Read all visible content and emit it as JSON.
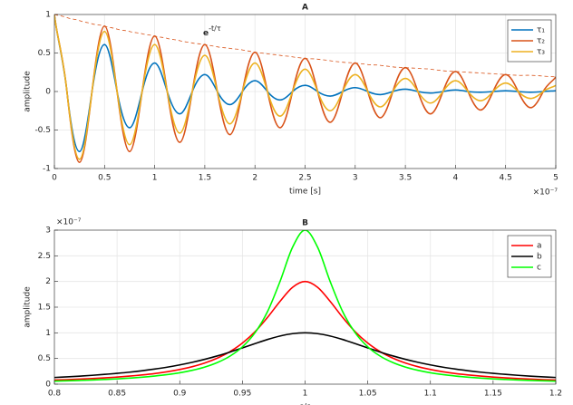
{
  "chart_data": [
    {
      "type": "line",
      "title": "A",
      "xlabel": "time [s]",
      "ylabel": "amplitude",
      "x_exponent": "×10⁻⁷",
      "annotation": {
        "text": "e",
        "superscript": "-t/τ"
      },
      "x": [
        0,
        0.125,
        0.25,
        0.375,
        0.5,
        0.625,
        0.75,
        0.875,
        1,
        1.125,
        1.25,
        1.375,
        1.5,
        1.625,
        1.75,
        1.875,
        2,
        2.125,
        2.25,
        2.375,
        2.5,
        2.625,
        2.75,
        2.875,
        3,
        3.125,
        3.25,
        3.375,
        3.5,
        3.625,
        3.75,
        3.875,
        4,
        4.125,
        4.25,
        4.375,
        4.5,
        4.625,
        4.75,
        4.875,
        5
      ],
      "series": [
        {
          "name": "τ₁",
          "color": "#0072BD",
          "values": [
            1,
            0,
            -0.78,
            0,
            0.61,
            0,
            -0.47,
            0,
            0.37,
            0,
            -0.29,
            0,
            0.22,
            0,
            -0.17,
            0,
            0.14,
            0,
            -0.11,
            0,
            0.08,
            0,
            -0.06,
            0,
            0.05,
            0,
            -0.04,
            0,
            0.03,
            0,
            -0.02,
            0,
            0.02,
            0,
            -0.01,
            0,
            0.01,
            0,
            -0.01,
            0,
            0.01
          ]
        },
        {
          "name": "τ₂",
          "color": "#D95319",
          "values": [
            1,
            0,
            -0.92,
            0,
            0.85,
            0,
            -0.78,
            0,
            0.72,
            0,
            -0.66,
            0,
            0.61,
            0,
            -0.56,
            0,
            0.51,
            0,
            -0.47,
            0,
            0.43,
            0,
            -0.4,
            0,
            0.37,
            0,
            -0.34,
            0,
            0.31,
            0,
            -0.29,
            0,
            0.26,
            0,
            -0.24,
            0,
            0.22,
            0,
            -0.21,
            0,
            0.19
          ]
        },
        {
          "name": "τ₃",
          "color": "#EDB120",
          "values": [
            1,
            0,
            -0.88,
            0,
            0.78,
            0,
            -0.69,
            0,
            0.61,
            0,
            -0.54,
            0,
            0.47,
            0,
            -0.42,
            0,
            0.37,
            0,
            -0.32,
            0,
            0.29,
            0,
            -0.25,
            0,
            0.22,
            0,
            -0.2,
            0,
            0.17,
            0,
            -0.15,
            0,
            0.14,
            0,
            -0.12,
            0,
            0.11,
            0,
            -0.09,
            0,
            0.08
          ]
        }
      ],
      "envelope": {
        "color": "#D95319",
        "dashed": true,
        "values": [
          1,
          0.96,
          0.92,
          0.88,
          0.85,
          0.81,
          0.78,
          0.75,
          0.72,
          0.69,
          0.66,
          0.63,
          0.61,
          0.58,
          0.56,
          0.54,
          0.51,
          0.49,
          0.47,
          0.45,
          0.43,
          0.42,
          0.4,
          0.38,
          0.37,
          0.35,
          0.34,
          0.32,
          0.31,
          0.3,
          0.29,
          0.27,
          0.26,
          0.25,
          0.24,
          0.23,
          0.22,
          0.21,
          0.21,
          0.2,
          0.19
        ]
      },
      "xlim": [
        0,
        5
      ],
      "xticks": [
        0,
        0.5,
        1,
        1.5,
        2,
        2.5,
        3,
        3.5,
        4,
        4.5,
        5
      ],
      "ylim": [
        -1,
        1
      ],
      "yticks": [
        -1,
        -0.5,
        0,
        0.5,
        1
      ],
      "grid": true,
      "legend": "upper right"
    },
    {
      "type": "line",
      "title": "B",
      "xlabel": "ε/ε",
      "ylabel": "amplitude",
      "y_exponent": "×10⁻⁷",
      "x": [
        0.8,
        0.81,
        0.82,
        0.83,
        0.84,
        0.85,
        0.86,
        0.87,
        0.88,
        0.89,
        0.9,
        0.91,
        0.92,
        0.93,
        0.94,
        0.95,
        0.96,
        0.97,
        0.98,
        0.99,
        1,
        1.01,
        1.02,
        1.03,
        1.04,
        1.05,
        1.06,
        1.07,
        1.08,
        1.09,
        1.1,
        1.11,
        1.12,
        1.13,
        1.14,
        1.15,
        1.16,
        1.17,
        1.18,
        1.19,
        1.2
      ],
      "series": [
        {
          "name": "a",
          "color": "#ff0000",
          "values": [
            0.08,
            0.088,
            0.098,
            0.109,
            0.122,
            0.138,
            0.157,
            0.18,
            0.207,
            0.242,
            0.286,
            0.341,
            0.413,
            0.508,
            0.633,
            0.8,
            1.02,
            1.299,
            1.613,
            1.887,
            2,
            1.887,
            1.613,
            1.299,
            1.02,
            0.8,
            0.633,
            0.508,
            0.413,
            0.341,
            0.286,
            0.242,
            0.207,
            0.18,
            0.157,
            0.138,
            0.122,
            0.109,
            0.098,
            0.088,
            0.08
          ]
        },
        {
          "name": "b",
          "color": "#000000",
          "values": [
            0.13,
            0.143,
            0.156,
            0.172,
            0.19,
            0.211,
            0.234,
            0.262,
            0.294,
            0.331,
            0.375,
            0.426,
            0.484,
            0.55,
            0.625,
            0.706,
            0.789,
            0.87,
            0.938,
            0.984,
            1,
            0.984,
            0.938,
            0.87,
            0.789,
            0.706,
            0.625,
            0.55,
            0.484,
            0.426,
            0.375,
            0.331,
            0.294,
            0.262,
            0.234,
            0.211,
            0.19,
            0.172,
            0.156,
            0.143,
            0.13
          ]
        },
        {
          "name": "c",
          "color": "#00ff00",
          "values": [
            0.059,
            0.065,
            0.072,
            0.081,
            0.091,
            0.103,
            0.118,
            0.136,
            0.158,
            0.186,
            0.222,
            0.27,
            0.333,
            0.421,
            0.545,
            0.727,
            1,
            1.412,
            2,
            2.667,
            3,
            2.667,
            2,
            1.412,
            1,
            0.727,
            0.545,
            0.421,
            0.333,
            0.27,
            0.222,
            0.186,
            0.158,
            0.136,
            0.118,
            0.103,
            0.091,
            0.081,
            0.072,
            0.065,
            0.059
          ]
        }
      ],
      "xlim": [
        0.8,
        1.2
      ],
      "xticks": [
        0.8,
        0.85,
        0.9,
        0.95,
        1,
        1.05,
        1.1,
        1.15,
        1.2
      ],
      "ylim": [
        0,
        3
      ],
      "yticks": [
        0,
        0.5,
        1,
        1.5,
        2,
        2.5,
        3
      ],
      "grid": true,
      "legend": "upper right"
    }
  ]
}
